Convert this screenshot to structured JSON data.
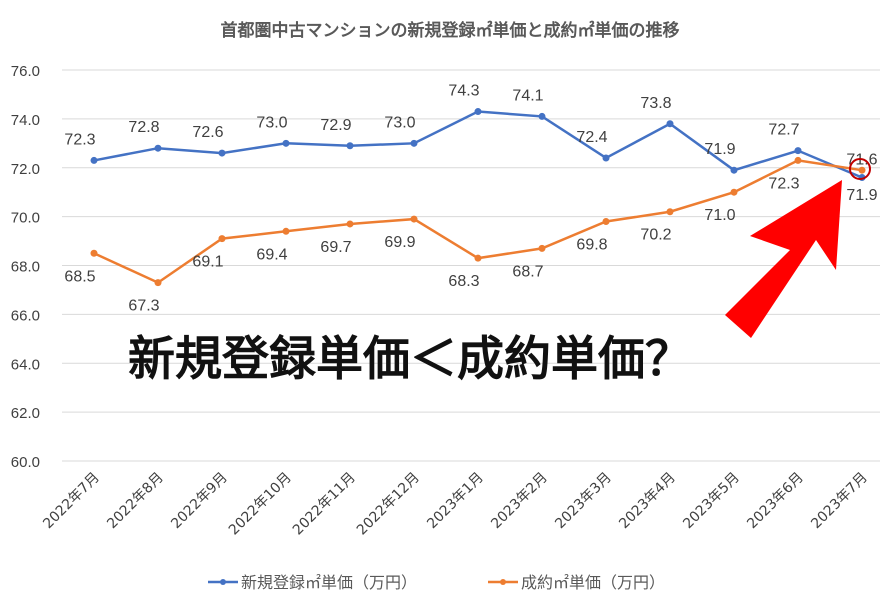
{
  "chart_data": {
    "type": "line",
    "title": "首都圏中古マンションの新規登録㎡単価と成約㎡単価の推移",
    "categories": [
      "2022年7月",
      "2022年8月",
      "2022年9月",
      "2022年10月",
      "2022年11月",
      "2022年12月",
      "2023年1月",
      "2023年2月",
      "2023年3月",
      "2023年4月",
      "2023年5月",
      "2023年6月",
      "2023年7月"
    ],
    "series": [
      {
        "name": "新規登録㎡単価（万円）",
        "color": "#4472c4",
        "values": [
          72.3,
          72.8,
          72.6,
          73.0,
          72.9,
          73.0,
          74.3,
          74.1,
          72.4,
          73.8,
          71.9,
          72.7,
          71.6
        ]
      },
      {
        "name": "成約㎡単価（万円）",
        "color": "#ed7d31",
        "values": [
          68.5,
          67.3,
          69.1,
          69.4,
          69.7,
          69.9,
          68.3,
          68.7,
          69.8,
          70.2,
          71.0,
          72.3,
          71.9
        ]
      }
    ],
    "ylim": [
      60,
      76
    ],
    "yticks": [
      "60.0",
      "62.0",
      "64.0",
      "66.0",
      "68.0",
      "70.0",
      "72.0",
      "74.0",
      "76.0"
    ],
    "grid": true,
    "legend": "bottom",
    "annotation": {
      "text": "新規登録単価＜成約単価？",
      "arrow_color": "#ff0000",
      "circle_color": "#c00000"
    }
  }
}
